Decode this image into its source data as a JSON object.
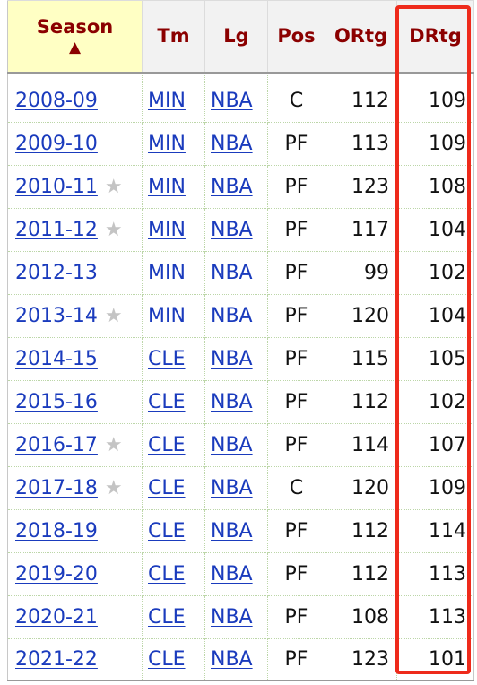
{
  "table": {
    "headers": {
      "season": "Season",
      "sort_indicator": "▲",
      "tm": "Tm",
      "lg": "Lg",
      "pos": "Pos",
      "ortg": "ORtg",
      "drtg": "DRtg"
    },
    "rows": [
      {
        "season": "2008-09",
        "star": false,
        "tm": "MIN",
        "lg": "NBA",
        "pos": "C",
        "ortg": "112",
        "drtg": "109"
      },
      {
        "season": "2009-10",
        "star": false,
        "tm": "MIN",
        "lg": "NBA",
        "pos": "PF",
        "ortg": "113",
        "drtg": "109"
      },
      {
        "season": "2010-11",
        "star": true,
        "tm": "MIN",
        "lg": "NBA",
        "pos": "PF",
        "ortg": "123",
        "drtg": "108"
      },
      {
        "season": "2011-12",
        "star": true,
        "tm": "MIN",
        "lg": "NBA",
        "pos": "PF",
        "ortg": "117",
        "drtg": "104"
      },
      {
        "season": "2012-13",
        "star": false,
        "tm": "MIN",
        "lg": "NBA",
        "pos": "PF",
        "ortg": "99",
        "drtg": "102"
      },
      {
        "season": "2013-14",
        "star": true,
        "tm": "MIN",
        "lg": "NBA",
        "pos": "PF",
        "ortg": "120",
        "drtg": "104"
      },
      {
        "season": "2014-15",
        "star": false,
        "tm": "CLE",
        "lg": "NBA",
        "pos": "PF",
        "ortg": "115",
        "drtg": "105"
      },
      {
        "season": "2015-16",
        "star": false,
        "tm": "CLE",
        "lg": "NBA",
        "pos": "PF",
        "ortg": "112",
        "drtg": "102"
      },
      {
        "season": "2016-17",
        "star": true,
        "tm": "CLE",
        "lg": "NBA",
        "pos": "PF",
        "ortg": "114",
        "drtg": "107"
      },
      {
        "season": "2017-18",
        "star": true,
        "tm": "CLE",
        "lg": "NBA",
        "pos": "C",
        "ortg": "120",
        "drtg": "109"
      },
      {
        "season": "2018-19",
        "star": false,
        "tm": "CLE",
        "lg": "NBA",
        "pos": "PF",
        "ortg": "112",
        "drtg": "114"
      },
      {
        "season": "2019-20",
        "star": false,
        "tm": "CLE",
        "lg": "NBA",
        "pos": "PF",
        "ortg": "112",
        "drtg": "113"
      },
      {
        "season": "2020-21",
        "star": false,
        "tm": "CLE",
        "lg": "NBA",
        "pos": "PF",
        "ortg": "108",
        "drtg": "113"
      },
      {
        "season": "2021-22",
        "star": false,
        "tm": "CLE",
        "lg": "NBA",
        "pos": "PF",
        "ortg": "123",
        "drtg": "101"
      }
    ]
  },
  "icons": {
    "star": "★",
    "star_meaning": "all-star-icon"
  },
  "colors": {
    "header_text": "#8b0000",
    "sorted_header_bg": "#ffffc4",
    "link": "#1a3bbd",
    "star": "#c4c4c4",
    "highlight": "#ee2a1b"
  }
}
